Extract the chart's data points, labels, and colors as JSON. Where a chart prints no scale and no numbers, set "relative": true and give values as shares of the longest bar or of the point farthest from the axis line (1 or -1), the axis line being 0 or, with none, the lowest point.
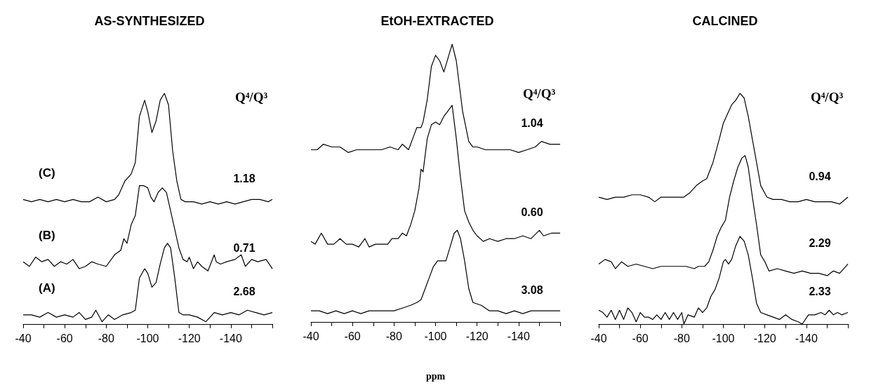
{
  "chart_data": [
    {
      "type": "line",
      "title": "AS-SYNTHESIZED",
      "legend_title": "Q⁴/Q³",
      "relative": true,
      "marker": "none",
      "xlim": [
        -40,
        -160
      ],
      "xticks": [
        -40,
        {
          "value": -50,
          "label": null
        },
        -60,
        {
          "value": -70,
          "label": null
        },
        -80,
        {
          "value": -90,
          "label": null
        },
        -100,
        {
          "value": -110,
          "label": null
        },
        -120,
        {
          "value": -130,
          "label": null
        },
        -140,
        {
          "value": -150,
          "label": null
        },
        {
          "value": -160,
          "label": null
        }
      ],
      "annotations": [
        "(C)",
        "(B)",
        "(A)"
      ],
      "series": [
        {
          "name": "1.18",
          "color": "#000000",
          "x": [
            -40,
            -44,
            -48,
            -52,
            -56,
            -60,
            -64,
            -68,
            -72,
            -76,
            -80,
            -84,
            -86,
            -89,
            -92,
            -94,
            -96,
            -98.5,
            -100,
            -102,
            -104,
            -106,
            -108,
            -110,
            -112,
            -114,
            -116,
            -118,
            -122,
            -126,
            -130,
            -134,
            -138,
            -142,
            -146,
            -150,
            -154,
            -158,
            -160
          ],
          "values": [
            0.54,
            0.53,
            0.54,
            0.53,
            0.54,
            0.53,
            0.54,
            0.53,
            0.53,
            0.55,
            0.53,
            0.54,
            0.56,
            0.62,
            0.65,
            0.7,
            0.9,
            0.97,
            0.92,
            0.83,
            0.88,
            0.97,
            1.0,
            0.95,
            0.75,
            0.62,
            0.54,
            0.53,
            0.53,
            0.52,
            0.53,
            0.52,
            0.53,
            0.52,
            0.53,
            0.54,
            0.54,
            0.53,
            0.54
          ]
        },
        {
          "name": "0.71",
          "color": "#000000",
          "x": [
            -40,
            -43,
            -46,
            -49,
            -52,
            -55,
            -58,
            -61,
            -64,
            -67,
            -70,
            -73,
            -76,
            -80,
            -84,
            -87,
            -88.5,
            -90,
            -92,
            -94,
            -96,
            -98,
            -100,
            -101.5,
            -103,
            -105,
            -107,
            -109,
            -112,
            -115,
            -117,
            -119,
            -120,
            -122,
            -124,
            -126,
            -129,
            -132,
            -133,
            -135,
            -138,
            -142,
            -145,
            -147,
            -150,
            -153,
            -157,
            -160
          ],
          "values": [
            0.27,
            0.25,
            0.29,
            0.27,
            0.28,
            0.25,
            0.27,
            0.26,
            0.28,
            0.24,
            0.25,
            0.27,
            0.26,
            0.25,
            0.3,
            0.32,
            0.37,
            0.35,
            0.43,
            0.47,
            0.6,
            0.6,
            0.59,
            0.55,
            0.53,
            0.57,
            0.59,
            0.57,
            0.45,
            0.33,
            0.28,
            0.27,
            0.29,
            0.24,
            0.27,
            0.25,
            0.23,
            0.3,
            0.27,
            0.26,
            0.27,
            0.28,
            0.3,
            0.25,
            0.28,
            0.27,
            0.28,
            0.24
          ]
        },
        {
          "name": "2.68",
          "color": "#000000",
          "x": [
            -40,
            -44,
            -48,
            -52,
            -56,
            -60,
            -64,
            -67,
            -70,
            -73,
            -75,
            -78,
            -81,
            -84,
            -88,
            -92,
            -94,
            -96,
            -98.5,
            -100,
            -102,
            -104,
            -106,
            -108,
            -109.5,
            -111,
            -113,
            -115,
            -117,
            -120,
            -124,
            -128,
            -132,
            -136,
            -140,
            -144,
            -148,
            -152,
            -156,
            -160
          ],
          "values": [
            0.04,
            0.04,
            0.03,
            0.05,
            0.03,
            0.04,
            0.03,
            0.05,
            0.02,
            0.03,
            0.06,
            0.01,
            0.04,
            0.02,
            0.04,
            0.05,
            0.06,
            0.2,
            0.24,
            0.22,
            0.16,
            0.18,
            0.26,
            0.33,
            0.35,
            0.33,
            0.2,
            0.05,
            0.04,
            0.04,
            0.03,
            0.01,
            0.05,
            0.04,
            0.05,
            0.04,
            0.06,
            0.05,
            0.04,
            0.05
          ]
        }
      ]
    },
    {
      "type": "line",
      "title": "EtOH-EXTRACTED",
      "legend_title": "Q⁴/Q³",
      "xlabel": "ppm",
      "relative": true,
      "marker": "none",
      "xlim": [
        -40,
        -160
      ],
      "xticks": [
        -40,
        {
          "value": -50,
          "label": null
        },
        -60,
        {
          "value": -70,
          "label": null
        },
        -80,
        {
          "value": -90,
          "label": null
        },
        -100,
        {
          "value": -110,
          "label": null
        },
        -120,
        {
          "value": -130,
          "label": null
        },
        -140,
        {
          "value": -150,
          "label": null
        },
        {
          "value": -160,
          "label": null
        }
      ],
      "series": [
        {
          "name": "1.04",
          "color": "#000000",
          "x": [
            -40,
            -43,
            -46,
            -50,
            -54,
            -58,
            -62,
            -66,
            -70,
            -74,
            -78,
            -82,
            -84,
            -87,
            -89,
            -91,
            -93,
            -94,
            -96,
            -98,
            -100,
            -102,
            -104,
            -106,
            -108,
            -110,
            -113,
            -116,
            -118,
            -120,
            -124,
            -128,
            -132,
            -136,
            -140,
            -144,
            -148,
            -151,
            -155,
            -160
          ],
          "values": [
            0.62,
            0.62,
            0.64,
            0.63,
            0.63,
            0.61,
            0.62,
            0.62,
            0.62,
            0.62,
            0.63,
            0.62,
            0.64,
            0.62,
            0.66,
            0.7,
            0.7,
            0.72,
            0.8,
            0.92,
            0.96,
            0.94,
            0.9,
            0.95,
            1.0,
            0.94,
            0.76,
            0.65,
            0.63,
            0.63,
            0.62,
            0.62,
            0.62,
            0.62,
            0.61,
            0.62,
            0.63,
            0.65,
            0.64,
            0.64
          ]
        },
        {
          "name": "0.60",
          "color": "#000000",
          "x": [
            -40,
            -42,
            -45,
            -48,
            -51,
            -54,
            -57,
            -60,
            -63,
            -66,
            -68,
            -71,
            -74,
            -77,
            -79,
            -82,
            -84,
            -86,
            -88,
            -90,
            -92,
            -93,
            -94,
            -95,
            -96,
            -98,
            -100,
            -102,
            -104,
            -106,
            -108,
            -110,
            -112,
            -114,
            -116,
            -118,
            -120,
            -123,
            -126,
            -130,
            -134,
            -138,
            -142,
            -146,
            -150,
            -152,
            -156,
            -160
          ],
          "values": [
            0.29,
            0.28,
            0.32,
            0.28,
            0.28,
            0.3,
            0.28,
            0.28,
            0.27,
            0.3,
            0.27,
            0.28,
            0.28,
            0.28,
            0.3,
            0.3,
            0.32,
            0.31,
            0.35,
            0.4,
            0.48,
            0.55,
            0.54,
            0.6,
            0.66,
            0.71,
            0.72,
            0.71,
            0.74,
            0.76,
            0.78,
            0.66,
            0.52,
            0.4,
            0.36,
            0.33,
            0.31,
            0.29,
            0.3,
            0.29,
            0.3,
            0.3,
            0.31,
            0.3,
            0.33,
            0.31,
            0.32,
            0.32
          ]
        },
        {
          "name": "3.08",
          "color": "#000000",
          "x": [
            -40,
            -44,
            -48,
            -52,
            -56,
            -60,
            -64,
            -68,
            -72,
            -76,
            -80,
            -84,
            -88,
            -91,
            -93,
            -95,
            -97,
            -99,
            -101,
            -103,
            -105,
            -107,
            -109,
            -110.5,
            -112,
            -114,
            -116,
            -118,
            -122,
            -126,
            -130,
            -134,
            -138,
            -142,
            -146,
            -150,
            -154,
            -160
          ],
          "values": [
            0.04,
            0.04,
            0.03,
            0.04,
            0.03,
            0.04,
            0.03,
            0.04,
            0.04,
            0.04,
            0.04,
            0.05,
            0.06,
            0.07,
            0.08,
            0.12,
            0.16,
            0.2,
            0.22,
            0.22,
            0.22,
            0.27,
            0.32,
            0.33,
            0.3,
            0.22,
            0.12,
            0.07,
            0.06,
            0.04,
            0.04,
            0.03,
            0.04,
            0.03,
            0.04,
            0.04,
            0.04,
            0.04
          ]
        }
      ]
    },
    {
      "type": "line",
      "title": "CALCINED",
      "legend_title": "Q⁴/Q³",
      "relative": true,
      "marker": "none",
      "xlim": [
        -40,
        -160
      ],
      "xticks": [
        -40,
        {
          "value": -50,
          "label": null
        },
        -60,
        {
          "value": -70,
          "label": null
        },
        -80,
        {
          "value": -90,
          "label": null
        },
        -100,
        {
          "value": -110,
          "label": null
        },
        -120,
        {
          "value": -130,
          "label": null
        },
        -140,
        {
          "value": -150,
          "label": null
        },
        {
          "value": -160,
          "label": null
        }
      ],
      "series": [
        {
          "name": "0.94",
          "color": "#000000",
          "x": [
            -40,
            -44,
            -48,
            -52,
            -56,
            -60,
            -64,
            -67,
            -70,
            -74,
            -78,
            -81,
            -84,
            -87,
            -90,
            -92,
            -95,
            -98,
            -100,
            -102,
            -104,
            -106,
            -108,
            -110,
            -112,
            -114,
            -116,
            -118,
            -121,
            -124,
            -128,
            -132,
            -136,
            -140,
            -144,
            -148,
            -152,
            -156,
            -160
          ],
          "values": [
            0.55,
            0.54,
            0.55,
            0.55,
            0.56,
            0.56,
            0.55,
            0.53,
            0.55,
            0.55,
            0.55,
            0.55,
            0.57,
            0.6,
            0.62,
            0.63,
            0.7,
            0.8,
            0.87,
            0.91,
            0.95,
            0.97,
            1.0,
            0.98,
            0.9,
            0.8,
            0.7,
            0.6,
            0.55,
            0.54,
            0.54,
            0.53,
            0.53,
            0.54,
            0.53,
            0.53,
            0.53,
            0.52,
            0.55
          ]
        },
        {
          "name": "2.29",
          "color": "#000000",
          "x": [
            -40,
            -43,
            -46,
            -48,
            -51,
            -54,
            -58,
            -62,
            -66,
            -70,
            -74,
            -78,
            -82,
            -86,
            -88,
            -91,
            -93,
            -95,
            -97,
            -99,
            -101,
            -103,
            -105,
            -107,
            -109,
            -110.5,
            -112,
            -114,
            -116,
            -118,
            -120,
            -122,
            -126,
            -130,
            -134,
            -138,
            -142,
            -146,
            -150,
            -153,
            -156,
            -158,
            -160
          ],
          "values": [
            0.26,
            0.28,
            0.27,
            0.24,
            0.27,
            0.25,
            0.26,
            0.25,
            0.24,
            0.25,
            0.25,
            0.25,
            0.25,
            0.24,
            0.25,
            0.25,
            0.27,
            0.32,
            0.38,
            0.42,
            0.45,
            0.55,
            0.62,
            0.68,
            0.72,
            0.73,
            0.68,
            0.55,
            0.43,
            0.3,
            0.27,
            0.23,
            0.24,
            0.23,
            0.22,
            0.23,
            0.22,
            0.22,
            0.21,
            0.23,
            0.22,
            0.24,
            0.26
          ]
        },
        {
          "name": "2.33",
          "color": "#000000",
          "x": [
            -40,
            -42,
            -44,
            -46,
            -48,
            -50,
            -52,
            -54,
            -56,
            -58,
            -60,
            -62,
            -64,
            -66,
            -68,
            -70,
            -72,
            -74,
            -76,
            -78,
            -80,
            -81,
            -83,
            -86,
            -88,
            -90,
            -92,
            -94,
            -96,
            -98,
            -100,
            -101,
            -102.5,
            -104,
            -106,
            -108,
            -110,
            -112,
            -114,
            -116,
            -118,
            -121,
            -124,
            -127,
            -130,
            -133,
            -136,
            -138,
            -141,
            -144,
            -147,
            -149,
            -151,
            -153,
            -155,
            -157,
            -160
          ],
          "values": [
            0.06,
            0.05,
            0.03,
            0.06,
            0.02,
            0.06,
            0.02,
            0.07,
            0.05,
            0.01,
            0.05,
            0.03,
            0.03,
            0.02,
            0.04,
            0.02,
            0.05,
            0.02,
            0.05,
            0.02,
            0.05,
            0,
            0.04,
            0.03,
            0.07,
            0.05,
            0.07,
            0.12,
            0.15,
            0.2,
            0.27,
            0.28,
            0.26,
            0.28,
            0.34,
            0.38,
            0.36,
            0.3,
            0.2,
            0.09,
            0.05,
            0.04,
            0.03,
            0.02,
            0.04,
            0.02,
            0.01,
            0,
            0.04,
            0.04,
            0.05,
            0.04,
            0.06,
            0.04,
            0.05,
            0.04,
            0.05
          ]
        }
      ]
    }
  ]
}
